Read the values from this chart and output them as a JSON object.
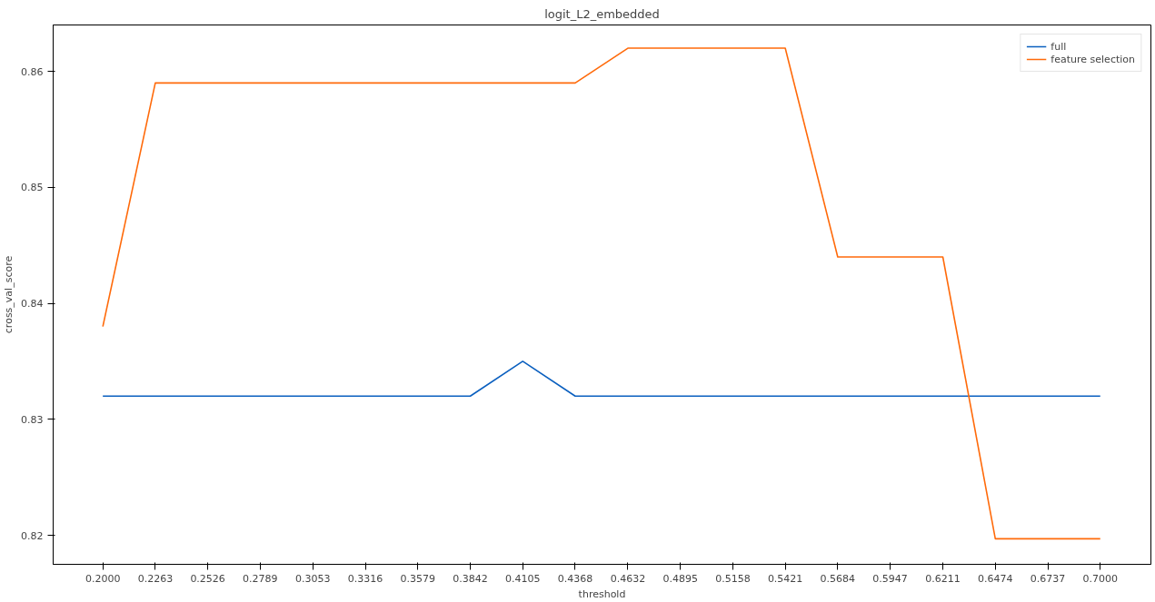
{
  "chart_data": {
    "type": "line",
    "title": "logit_L2_embedded",
    "xlabel": "threshold",
    "ylabel": "cross_val_score",
    "x": [
      0.2,
      0.2263,
      0.2526,
      0.2789,
      0.3053,
      0.3316,
      0.3579,
      0.3842,
      0.4105,
      0.4368,
      0.4632,
      0.4895,
      0.5158,
      0.5421,
      0.5684,
      0.5947,
      0.6211,
      0.6474,
      0.6737,
      0.7
    ],
    "series": [
      {
        "name": "full",
        "color": "#0a5fbf",
        "values": [
          0.832,
          0.832,
          0.832,
          0.832,
          0.832,
          0.832,
          0.832,
          0.832,
          0.835,
          0.832,
          0.832,
          0.832,
          0.832,
          0.832,
          0.832,
          0.832,
          0.832,
          0.832,
          0.832,
          0.832
        ]
      },
      {
        "name": "feature selection",
        "color": "#ff6a0a",
        "values": [
          0.838,
          0.859,
          0.859,
          0.859,
          0.859,
          0.859,
          0.859,
          0.859,
          0.859,
          0.859,
          0.862,
          0.862,
          0.862,
          0.862,
          0.844,
          0.844,
          0.844,
          0.8197,
          0.8197,
          0.8197
        ]
      }
    ],
    "xlim": [
      0.1751,
      0.7254
    ],
    "ylim": [
      0.8175,
      0.864
    ],
    "xticks": [
      {
        "value": 0.2,
        "label": "0.2000"
      },
      {
        "value": 0.2263,
        "label": "0.2263"
      },
      {
        "value": 0.2526,
        "label": "0.2526"
      },
      {
        "value": 0.2789,
        "label": "0.2789"
      },
      {
        "value": 0.3053,
        "label": "0.3053"
      },
      {
        "value": 0.3316,
        "label": "0.3316"
      },
      {
        "value": 0.3579,
        "label": "0.3579"
      },
      {
        "value": 0.3842,
        "label": "0.3842"
      },
      {
        "value": 0.4105,
        "label": "0.4105"
      },
      {
        "value": 0.4368,
        "label": "0.4368"
      },
      {
        "value": 0.4632,
        "label": "0.4632"
      },
      {
        "value": 0.4895,
        "label": "0.4895"
      },
      {
        "value": 0.5158,
        "label": "0.5158"
      },
      {
        "value": 0.5421,
        "label": "0.5421"
      },
      {
        "value": 0.5684,
        "label": "0.5684"
      },
      {
        "value": 0.5947,
        "label": "0.5947"
      },
      {
        "value": 0.6211,
        "label": "0.6211"
      },
      {
        "value": 0.6474,
        "label": "0.6474"
      },
      {
        "value": 0.6737,
        "label": "0.6737"
      },
      {
        "value": 0.7,
        "label": "0.7000"
      }
    ],
    "yticks": [
      {
        "value": 0.82,
        "label": "0.82"
      },
      {
        "value": 0.83,
        "label": "0.83"
      },
      {
        "value": 0.84,
        "label": "0.84"
      },
      {
        "value": 0.85,
        "label": "0.85"
      },
      {
        "value": 0.86,
        "label": "0.86"
      }
    ],
    "grid": false,
    "legend": "top right",
    "marker": "none",
    "line_style": "solid"
  }
}
